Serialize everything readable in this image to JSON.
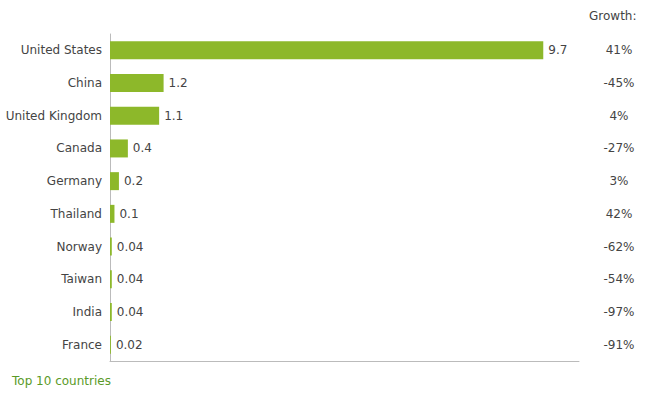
{
  "chart_data": {
    "type": "bar",
    "orientation": "horizontal",
    "categories": [
      "United States",
      "China",
      "United Kingdom",
      "Canada",
      "Germany",
      "Thailand",
      "Norway",
      "Taiwan",
      "India",
      "France"
    ],
    "values": [
      9.7,
      1.2,
      1.1,
      0.4,
      0.2,
      0.1,
      0.04,
      0.04,
      0.04,
      0.02
    ],
    "color": "#8db82a",
    "xlim": [
      0,
      10.5
    ],
    "data_labels": true,
    "tick_labels": "y",
    "grid": false,
    "growth": {
      "title": "Growth:",
      "values": [
        41,
        -45,
        4,
        -27,
        3,
        42,
        -62,
        -54,
        -97,
        -91
      ],
      "value_labels": [
        "41%",
        "-45%",
        "4%",
        "-27%",
        "3%",
        "42%",
        "-62%",
        "-54%",
        "-97%",
        "-91%"
      ]
    },
    "footnote": "Top 10 countries"
  }
}
